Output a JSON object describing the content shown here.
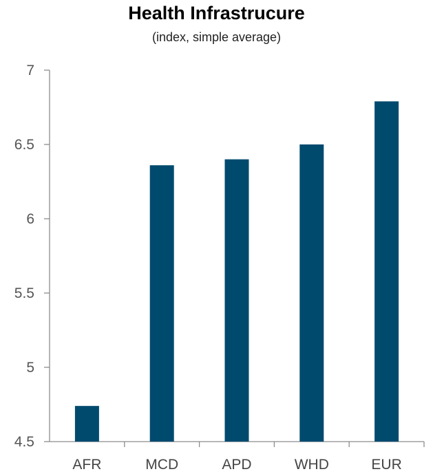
{
  "chart_data": {
    "type": "bar",
    "title": "Health Infrastrucure",
    "subtitle": "(index, simple average)",
    "xlabel": "",
    "ylabel": "",
    "categories": [
      "AFR",
      "MCD",
      "APD",
      "WHD",
      "EUR"
    ],
    "values": [
      4.74,
      6.36,
      6.4,
      6.5,
      6.79
    ],
    "ylim": [
      4.5,
      7
    ],
    "yticks": [
      4.5,
      5,
      5.5,
      6,
      6.5,
      7
    ],
    "ytick_labels": [
      "4.5",
      "5",
      "5.5",
      "6",
      "6.5",
      "7"
    ],
    "grid": false,
    "legend": "none",
    "bar_color": "#004a6e",
    "axis_color": "#8c8c8c"
  }
}
